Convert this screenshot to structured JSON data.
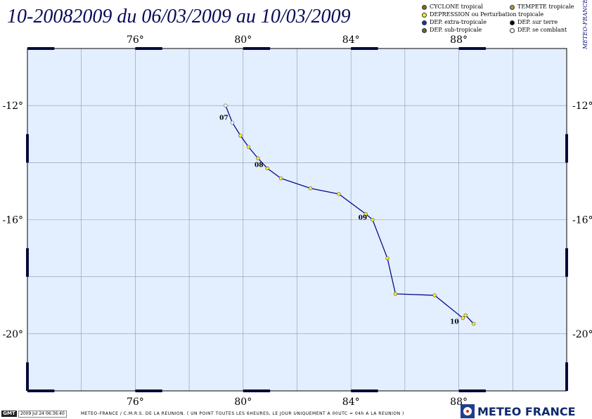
{
  "title": "10-20082009 du 06/03/2009 au 10/03/2009",
  "side_label": "METEO-FRANCE",
  "legend": [
    {
      "label": "CYCLONE tropical",
      "color": "#7a6a2a",
      "icon": "cyclone-dot"
    },
    {
      "label": "TEMPETE tropicale",
      "color": "#b09a40",
      "icon": "storm-dot"
    },
    {
      "label": "DEPRESSION ou Perturbation tropicale",
      "color": "#f5ef2a",
      "icon": "depression-dot"
    },
    {
      "label": "DEP. extra-tropicale",
      "color": "#1a2ec0",
      "icon": "extratropical-dot"
    },
    {
      "label": "DEP. sur terre",
      "color": "#000000",
      "icon": "overland-dot"
    },
    {
      "label": "DEP. sub-tropicale",
      "color": "#556b3a",
      "icon": "subtropical-dot"
    },
    {
      "label": "DEP. se comblant",
      "color": "#ffffff",
      "icon": "filling-dot"
    }
  ],
  "map": {
    "lon_range": [
      72,
      92
    ],
    "lat_range": [
      -22,
      -10
    ],
    "lon_ticks": [
      {
        "value": 76,
        "label": "76°"
      },
      {
        "value": 80,
        "label": "80°"
      },
      {
        "value": 84,
        "label": "84°"
      },
      {
        "value": 88,
        "label": "88°"
      }
    ],
    "lat_ticks": [
      {
        "value": -12,
        "label": "-12°"
      },
      {
        "value": -16,
        "label": "-16°"
      },
      {
        "value": -20,
        "label": "-20°"
      }
    ],
    "track_color": "#0a0a8a",
    "ocean_color": "#e3efff",
    "grid_color": "#8898b0",
    "track": [
      {
        "lon": 79.35,
        "lat": -12.0,
        "type": "filling"
      },
      {
        "lon": 79.6,
        "lat": -12.6,
        "type": "filling"
      },
      {
        "lon": 79.9,
        "lat": -13.05,
        "type": "depression"
      },
      {
        "lon": 80.2,
        "lat": -13.45,
        "type": "depression"
      },
      {
        "lon": 80.55,
        "lat": -13.85,
        "type": "depression"
      },
      {
        "lon": 80.9,
        "lat": -14.2,
        "type": "depression"
      },
      {
        "lon": 81.4,
        "lat": -14.55,
        "type": "depression"
      },
      {
        "lon": 82.5,
        "lat": -14.9,
        "type": "depression"
      },
      {
        "lon": 83.55,
        "lat": -15.1,
        "type": "depression"
      },
      {
        "lon": 84.55,
        "lat": -15.8,
        "type": "depression"
      },
      {
        "lon": 84.8,
        "lat": -16.0,
        "type": "depression"
      },
      {
        "lon": 85.35,
        "lat": -17.35,
        "type": "depression"
      },
      {
        "lon": 85.65,
        "lat": -18.6,
        "type": "depression"
      },
      {
        "lon": 87.1,
        "lat": -18.65,
        "type": "depression"
      },
      {
        "lon": 88.15,
        "lat": -19.45,
        "type": "depression"
      },
      {
        "lon": 88.25,
        "lat": -19.35,
        "type": "depression"
      },
      {
        "lon": 88.55,
        "lat": -19.65,
        "type": "depression"
      }
    ],
    "day_labels": [
      {
        "text": "07",
        "lon": 79.45,
        "lat": -12.4
      },
      {
        "text": "08",
        "lon": 80.75,
        "lat": -14.05
      },
      {
        "text": "09",
        "lon": 84.6,
        "lat": -15.9
      },
      {
        "text": "10",
        "lon": 88.0,
        "lat": -19.55
      }
    ]
  },
  "footer": {
    "gmt": "GMT",
    "date": "2009 Jul 24 06:36:40",
    "credit": "METEO-FRANCE / C.M.R.S. DE LA REUNION.  ( UN POINT TOUTES LES 6HEURES, LE JOUR UNIQUEMENT A 00UTC = 04h A LA REUNION )",
    "brand": "METEO FRANCE"
  }
}
